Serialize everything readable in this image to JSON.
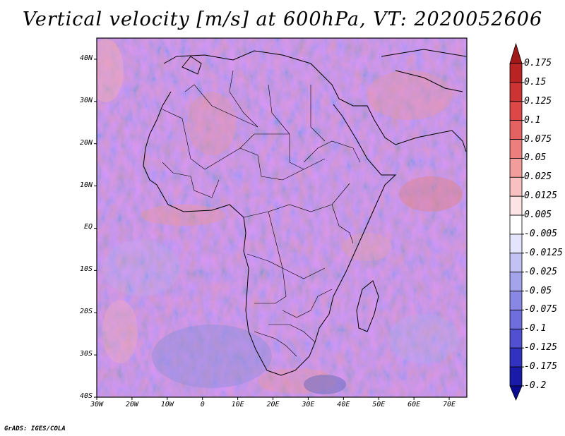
{
  "title": "Vertical velocity [m/s] at 600hPa, VT: 2020052606",
  "credit": "GrADS: IGES/COLA",
  "map": {
    "lat_labels": [
      "40N",
      "30N",
      "20N",
      "10N",
      "EQ",
      "10S",
      "20S",
      "30S",
      "40S"
    ],
    "lat_values": [
      40,
      30,
      20,
      10,
      0,
      -10,
      -20,
      -30,
      -40
    ],
    "lon_labels": [
      "30W",
      "20W",
      "10W",
      "0",
      "10E",
      "20E",
      "30E",
      "40E",
      "50E",
      "60E",
      "70E"
    ],
    "lon_values": [
      -30,
      -20,
      -10,
      0,
      10,
      20,
      30,
      40,
      50,
      60,
      70
    ],
    "lon_range": [
      -30,
      75
    ],
    "lat_range": [
      -40,
      45
    ]
  },
  "colorbar": {
    "labels": [
      "0.175",
      "0.15",
      "0.125",
      "0.1",
      "0.075",
      "0.05",
      "0.025",
      "0.0125",
      "0.005",
      "-0.005",
      "-0.0125",
      "-0.025",
      "-0.05",
      "-0.075",
      "-0.1",
      "-0.125",
      "-0.175",
      "-0.2"
    ],
    "colors": [
      "#a01818",
      "#b82424",
      "#cc3434",
      "#dc4848",
      "#e46262",
      "#ec7e7e",
      "#f29c9c",
      "#f8c0c0",
      "#fde4e4",
      "#ffffff",
      "#e4e4fc",
      "#c2c2f4",
      "#a4a4ec",
      "#8888e4",
      "#6e6edc",
      "#5050d0",
      "#3232c0",
      "#1a1aa8",
      "#0a0a90"
    ]
  }
}
